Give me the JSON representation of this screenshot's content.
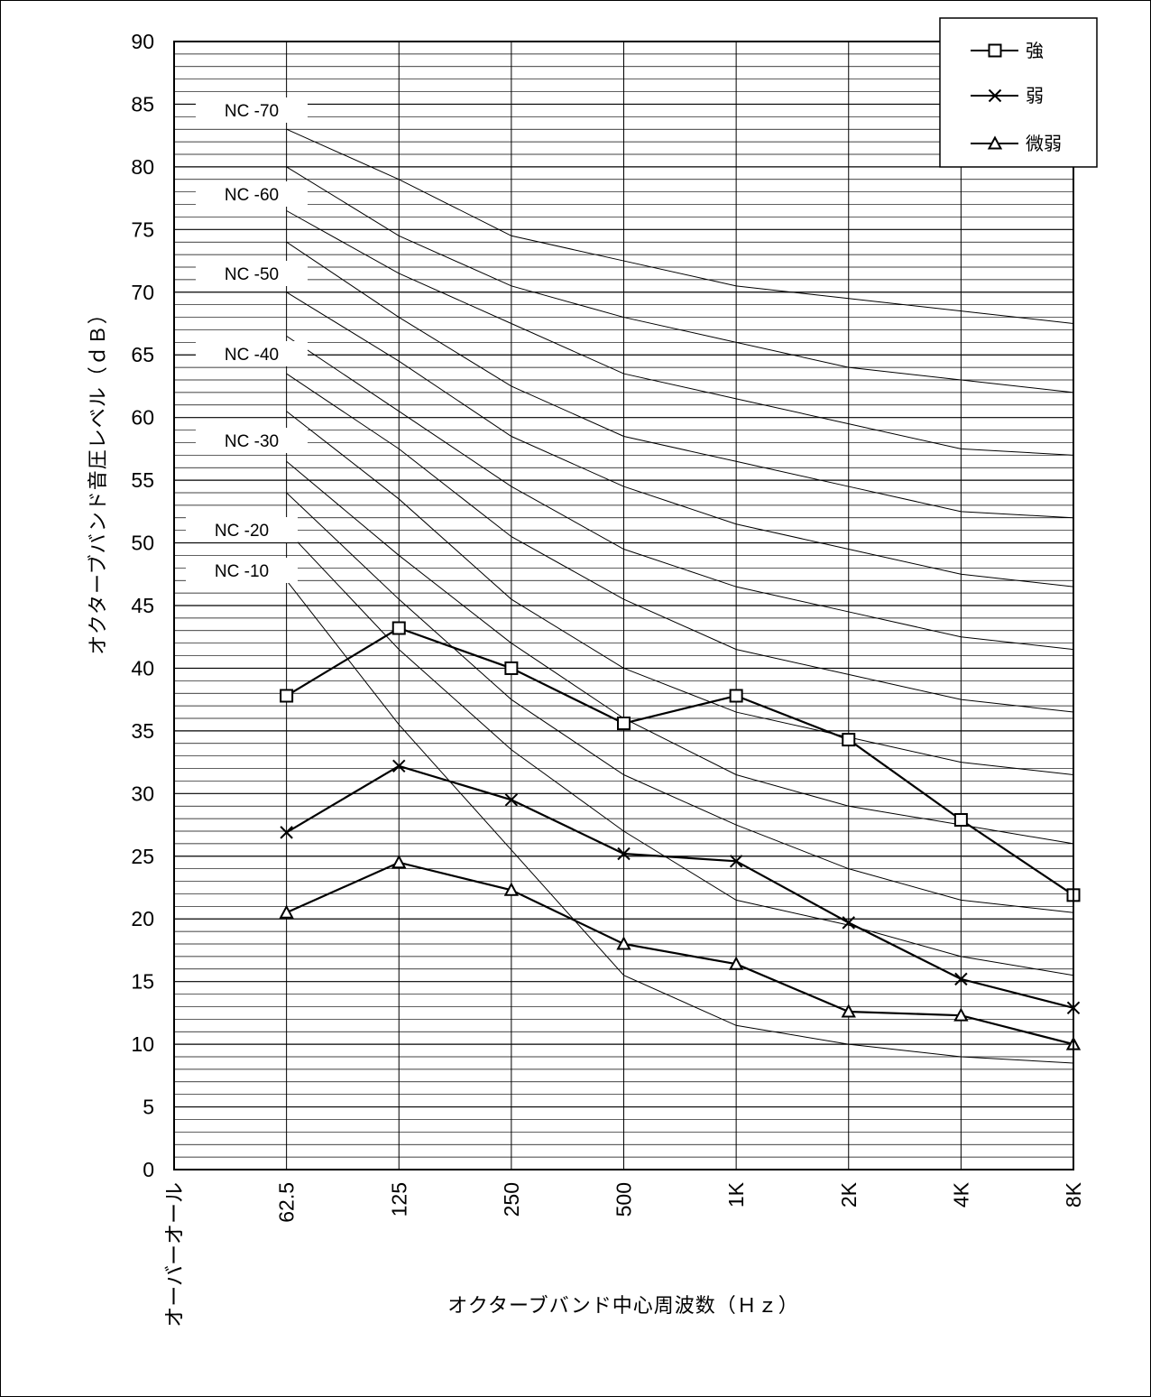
{
  "chart_data": {
    "type": "line",
    "title": "",
    "xlabel": "オクターブバンド中心周波数（Ｈｚ）",
    "ylabel": "オクターブバンド音圧レベル（ｄＢ）",
    "ylim": [
      0,
      90
    ],
    "y_ticks": [
      "0",
      "5",
      "10",
      "15",
      "20",
      "25",
      "30",
      "35",
      "40",
      "45",
      "50",
      "55",
      "60",
      "65",
      "70",
      "75",
      "80",
      "85",
      "90"
    ],
    "categories": [
      "オーバーオール",
      "62.5",
      "125",
      "250",
      "500",
      "1K",
      "2K",
      "4K",
      "8K"
    ],
    "grid": "horizontal lines every 1 dB; vertical lines at each band",
    "legend_position": "top-right",
    "series": [
      {
        "name": "強",
        "marker": "square",
        "values": [
          null,
          37.8,
          43.2,
          40.0,
          35.6,
          37.8,
          34.3,
          27.9,
          21.9
        ]
      },
      {
        "name": "弱",
        "marker": "x",
        "values": [
          null,
          26.9,
          32.2,
          29.5,
          25.2,
          24.6,
          19.7,
          15.2,
          12.9
        ]
      },
      {
        "name": "微弱",
        "marker": "triangle",
        "values": [
          null,
          20.5,
          24.5,
          22.3,
          18.0,
          16.4,
          12.6,
          12.3,
          10.0
        ]
      }
    ],
    "nc_curves": [
      {
        "label": "NC -70",
        "values": [
          null,
          83,
          79,
          74.5,
          72.5,
          70.5,
          69.5,
          68.5,
          67.5
        ]
      },
      {
        "label": "NC -60",
        "values": [
          null,
          80,
          74.5,
          70.5,
          68,
          66,
          64,
          63,
          62
        ]
      },
      {
        "label": "NC -50",
        "values": [
          null,
          76.5,
          71.5,
          67.5,
          63.5,
          61.5,
          59.5,
          57.5,
          57
        ]
      },
      {
        "label": "NC -40",
        "values": [
          null,
          74,
          68,
          62.5,
          58.5,
          56.5,
          54.5,
          52.5,
          52
        ]
      },
      {
        "label": "NC -30",
        "values": [
          null,
          70,
          64.5,
          58.5,
          54.5,
          51.5,
          49.5,
          47.5,
          46.5
        ]
      },
      {
        "label": "NC -20",
        "values": [
          null,
          66.5,
          60.5,
          54.5,
          49.5,
          46.5,
          44.5,
          42.5,
          41.5
        ]
      },
      {
        "label": "NC -10",
        "values": [
          null,
          63.5,
          57.5,
          50.5,
          45.5,
          41.5,
          39.5,
          37.5,
          36.5
        ]
      },
      {
        "label": "",
        "values": [
          null,
          60.5,
          53.5,
          45.5,
          40,
          36.5,
          34.5,
          32.5,
          31.5
        ]
      },
      {
        "label": "",
        "values": [
          null,
          56.5,
          49,
          42,
          36,
          31.5,
          29,
          27.5,
          26
        ]
      },
      {
        "label": "",
        "values": [
          null,
          54,
          45.5,
          37.5,
          31.5,
          27.5,
          24,
          21.5,
          20.5
        ]
      },
      {
        "label": "",
        "values": [
          null,
          51,
          41.5,
          33.5,
          27,
          21.5,
          19.5,
          17,
          15.5
        ]
      },
      {
        "label": "",
        "values": [
          null,
          47,
          35.5,
          25.5,
          15.5,
          11.5,
          10,
          9,
          8.5
        ]
      }
    ]
  }
}
